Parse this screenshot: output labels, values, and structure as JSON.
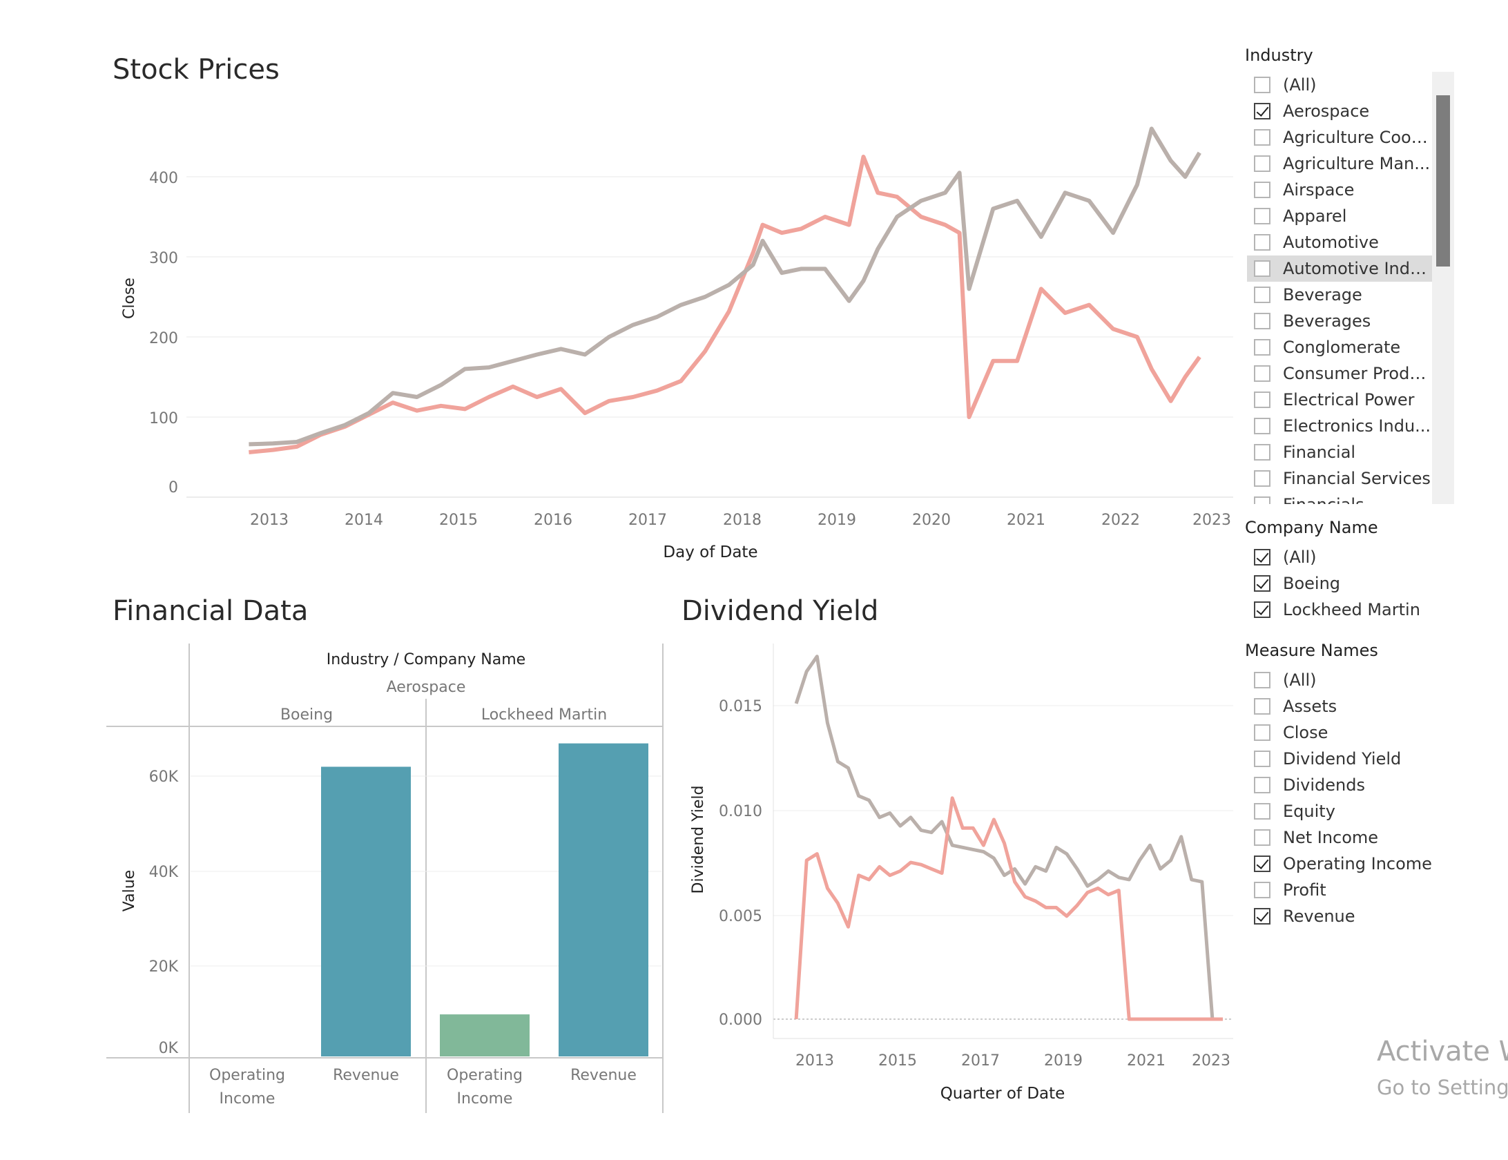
{
  "stock": {
    "title": "Stock Prices",
    "ylabel": "Close",
    "xlabel": "Day of Date",
    "yticks": [
      "400",
      "300",
      "200",
      "100",
      "0"
    ],
    "xticks": [
      "2013",
      "2014",
      "2015",
      "2016",
      "2017",
      "2018",
      "2019",
      "2020",
      "2021",
      "2022",
      "2023"
    ]
  },
  "financial": {
    "title": "Financial Data",
    "header": "Industry  /  Company Name",
    "industry": "Aerospace",
    "companies": [
      "Boeing",
      "Lockheed Martin"
    ],
    "ylabel": "Value",
    "yticks": [
      "60K",
      "40K",
      "20K",
      "0K"
    ],
    "categories": [
      [
        "Operating",
        "Income"
      ],
      [
        "Revenue"
      ],
      [
        "Operating",
        "Income"
      ],
      [
        "Revenue"
      ]
    ]
  },
  "dividend": {
    "title": "Dividend Yield",
    "ylabel": "Dividend Yield",
    "xlabel": "Quarter of Date",
    "yticks": [
      "0.015",
      "0.010",
      "0.005",
      "0.000"
    ],
    "xticks": [
      "2013",
      "2015",
      "2017",
      "2019",
      "2021",
      "2023"
    ]
  },
  "filters": {
    "industry": {
      "title": "Industry",
      "items": [
        {
          "label": "(All)",
          "checked": false
        },
        {
          "label": "Aerospace",
          "checked": true
        },
        {
          "label": "Agriculture Coop...",
          "checked": false
        },
        {
          "label": "Agriculture Man...",
          "checked": false
        },
        {
          "label": "Airspace",
          "checked": false
        },
        {
          "label": "Apparel",
          "checked": false
        },
        {
          "label": "Automotive",
          "checked": false
        },
        {
          "label": "Automotive Indu...",
          "checked": false,
          "hover": true
        },
        {
          "label": "Beverage",
          "checked": false
        },
        {
          "label": "Beverages",
          "checked": false
        },
        {
          "label": "Conglomerate",
          "checked": false
        },
        {
          "label": "Consumer Produ...",
          "checked": false
        },
        {
          "label": "Electrical Power",
          "checked": false
        },
        {
          "label": "Electronics Indu...",
          "checked": false
        },
        {
          "label": "Financial",
          "checked": false
        },
        {
          "label": "Financial Services",
          "checked": false
        },
        {
          "label": "Financials",
          "checked": false
        }
      ]
    },
    "company": {
      "title": "Company Name",
      "items": [
        {
          "label": "(All)",
          "checked": true
        },
        {
          "label": "Boeing",
          "checked": true
        },
        {
          "label": "Lockheed Martin",
          "checked": true
        }
      ]
    },
    "measures": {
      "title": "Measure Names",
      "items": [
        {
          "label": "(All)",
          "checked": false
        },
        {
          "label": "Assets",
          "checked": false
        },
        {
          "label": "Close",
          "checked": false
        },
        {
          "label": "Dividend Yield",
          "checked": false
        },
        {
          "label": "Dividends",
          "checked": false
        },
        {
          "label": "Equity",
          "checked": false
        },
        {
          "label": "Net Income",
          "checked": false
        },
        {
          "label": "Operating Income",
          "checked": true
        },
        {
          "label": "Profit",
          "checked": false
        },
        {
          "label": "Revenue",
          "checked": true
        }
      ]
    }
  },
  "watermark": {
    "line1": "Activate W",
    "line2": "Go to Settings"
  },
  "colors": {
    "boeing": "#f0a39b",
    "lockheed": "#bab0ab",
    "revenue": "#559fb1",
    "operating_income": "#81b899"
  },
  "chart_data": [
    {
      "type": "line",
      "title": "Stock Prices",
      "xlabel": "Day of Date",
      "ylabel": "Close",
      "ylim": [
        0,
        450
      ],
      "xlim": [
        2012.1,
        2023.0
      ],
      "x": [
        2012.75,
        2013.0,
        2013.25,
        2013.5,
        2013.75,
        2014.0,
        2014.25,
        2014.5,
        2014.75,
        2015.0,
        2015.25,
        2015.5,
        2015.75,
        2016.0,
        2016.25,
        2016.5,
        2016.75,
        2017.0,
        2017.25,
        2017.5,
        2017.75,
        2018.0,
        2018.1,
        2018.3,
        2018.5,
        2018.75,
        2019.0,
        2019.15,
        2019.3,
        2019.5,
        2019.75,
        2020.0,
        2020.15,
        2020.25,
        2020.5,
        2020.75,
        2021.0,
        2021.25,
        2021.5,
        2021.75,
        2022.0,
        2022.15,
        2022.35,
        2022.5,
        2022.65
      ],
      "series": [
        {
          "color": "#f0a39b",
          "values": [
            56,
            59,
            63,
            78,
            88,
            103,
            118,
            108,
            114,
            110,
            125,
            138,
            125,
            135,
            105,
            120,
            125,
            133,
            145,
            182,
            232,
            305,
            340,
            330,
            335,
            350,
            340,
            425,
            380,
            375,
            350,
            340,
            330,
            100,
            170,
            170,
            260,
            230,
            240,
            210,
            200,
            160,
            120,
            150,
            175
          ]
        },
        {
          "color": "#bab0ab",
          "values": [
            66,
            67,
            69,
            80,
            90,
            105,
            130,
            125,
            140,
            160,
            162,
            170,
            178,
            185,
            178,
            200,
            215,
            225,
            240,
            250,
            265,
            290,
            320,
            280,
            285,
            285,
            245,
            270,
            310,
            350,
            370,
            380,
            405,
            260,
            360,
            370,
            325,
            380,
            370,
            330,
            390,
            460,
            420,
            400,
            430
          ]
        }
      ]
    },
    {
      "type": "bar",
      "title": "Financial Data",
      "ylabel": "Value",
      "ylim": [
        0,
        70000
      ],
      "categories": [
        "Boeing Operating Income",
        "Boeing Revenue",
        "Lockheed Martin Operating Income",
        "Lockheed Martin Revenue"
      ],
      "values": [
        0,
        62000,
        9000,
        67000
      ],
      "colors": [
        "#81b899",
        "#559fb1",
        "#81b899",
        "#559fb1"
      ]
    },
    {
      "type": "line",
      "title": "Dividend Yield",
      "xlabel": "Quarter of Date",
      "ylabel": "Dividend Yield",
      "ylim": [
        0,
        0.0175
      ],
      "xlim": [
        2011.95,
        2023.0
      ],
      "x": [
        2012.5,
        2012.75,
        2013.0,
        2013.25,
        2013.5,
        2013.75,
        2014.0,
        2014.25,
        2014.5,
        2014.75,
        2015.0,
        2015.25,
        2015.5,
        2015.75,
        2016.0,
        2016.25,
        2016.5,
        2016.75,
        2017.0,
        2017.25,
        2017.5,
        2017.75,
        2018.0,
        2018.25,
        2018.5,
        2018.75,
        2019.0,
        2019.25,
        2019.5,
        2019.75,
        2020.0,
        2020.25,
        2020.5,
        2020.75,
        2021.0,
        2021.25,
        2021.5,
        2021.75,
        2022.0,
        2022.25,
        2022.5,
        2022.75
      ],
      "series": [
        {
          "color": "#bab0ab",
          "values": [
            0.0147,
            0.0162,
            0.0169,
            0.0138,
            0.012,
            0.0117,
            0.0104,
            0.0102,
            0.0094,
            0.0096,
            0.009,
            0.0094,
            0.0088,
            0.0087,
            0.0092,
            0.0081,
            0.008,
            0.0079,
            0.0078,
            0.0075,
            0.0067,
            0.007,
            0.0063,
            0.0071,
            0.0069,
            0.008,
            0.0077,
            0.007,
            0.0062,
            0.0065,
            0.0069,
            0.0066,
            0.0065,
            0.0074,
            0.0081,
            0.007,
            0.0074,
            0.0085,
            0.0065,
            0.0064,
            0.0,
            0.0
          ]
        },
        {
          "color": "#f0a39b",
          "values": [
            0.0,
            0.0074,
            0.0077,
            0.0061,
            0.0054,
            0.0043,
            0.0067,
            0.0065,
            0.0071,
            0.0067,
            0.0069,
            0.0073,
            0.0072,
            0.007,
            0.0068,
            0.0103,
            0.0089,
            0.0089,
            0.0081,
            0.0093,
            0.0082,
            0.0064,
            0.0057,
            0.0055,
            0.0052,
            0.0052,
            0.0048,
            0.0053,
            0.0059,
            0.0061,
            0.0058,
            0.006,
            0.0,
            0.0,
            0.0,
            0.0,
            0.0,
            0.0,
            0.0,
            0.0,
            0.0,
            0.0
          ]
        }
      ]
    }
  ]
}
